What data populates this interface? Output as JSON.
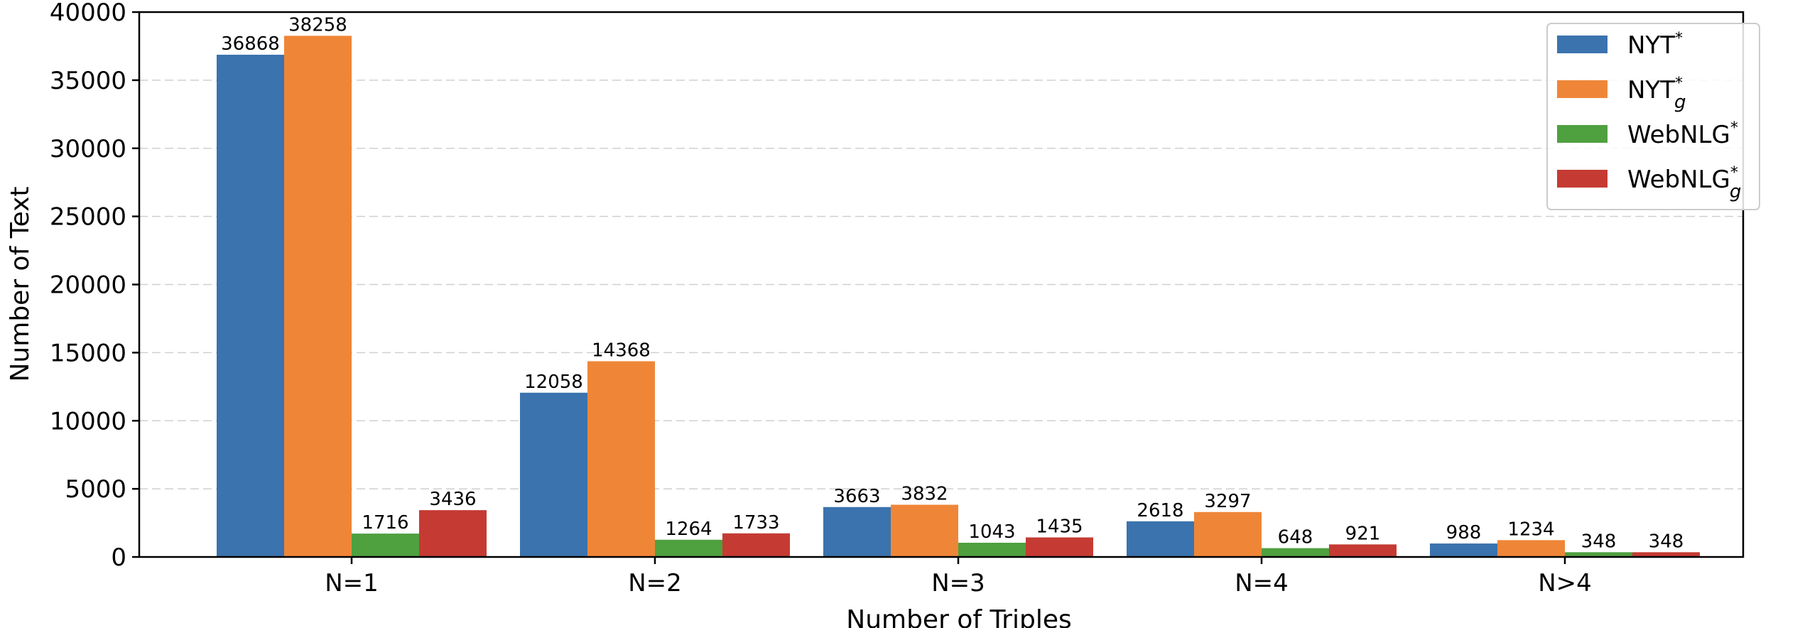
{
  "chart_data": {
    "type": "bar",
    "xlabel": "Number of Triples",
    "ylabel": "Number of Text",
    "categories": [
      "N=1",
      "N=2",
      "N=3",
      "N=4",
      "N>4"
    ],
    "ylim": [
      0,
      40000
    ],
    "yticks": [
      "0",
      "5000",
      "10000",
      "15000",
      "20000",
      "25000",
      "30000",
      "35000",
      "40000"
    ],
    "grid": "horizontal dashed",
    "legend_position": "top-right",
    "series": [
      {
        "name": "NYT",
        "sup": "*",
        "sub": "",
        "color": "#3b73ae",
        "values": [
          36868,
          12058,
          3663,
          2618,
          988
        ]
      },
      {
        "name": "NYT",
        "sup": "*",
        "sub": "g",
        "color": "#ef8637",
        "values": [
          38258,
          14368,
          3832,
          3297,
          1234
        ]
      },
      {
        "name": "WebNLG",
        "sup": "*",
        "sub": "",
        "color": "#4fa03f",
        "values": [
          1716,
          1264,
          1043,
          648,
          348
        ]
      },
      {
        "name": "WebNLG",
        "sup": "*",
        "sub": "g",
        "color": "#c53b33",
        "values": [
          3436,
          1733,
          1435,
          921,
          348
        ]
      }
    ]
  }
}
